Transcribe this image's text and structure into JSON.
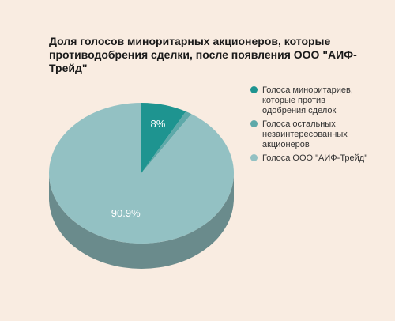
{
  "chart_data": {
    "type": "pie",
    "title": "Доля голосов миноритарных акционеров, которые противодобрения сделки, после появления ООО \"АИФ-Трейд\"",
    "slices": [
      {
        "name": "Голоса миноритариев, которые против одобрения сделок",
        "value": 8.0,
        "label": "8%",
        "color": "#1e9490"
      },
      {
        "name": "Голоса остальных незаинтересованных акционеров",
        "value": 1.1,
        "label": "",
        "color": "#5ea9a9"
      },
      {
        "name": "Голоса ООО \"АИФ-Трейд\"",
        "value": 90.9,
        "label": "90.9%",
        "color": "#93c1c3"
      }
    ],
    "legend_position": "right"
  }
}
